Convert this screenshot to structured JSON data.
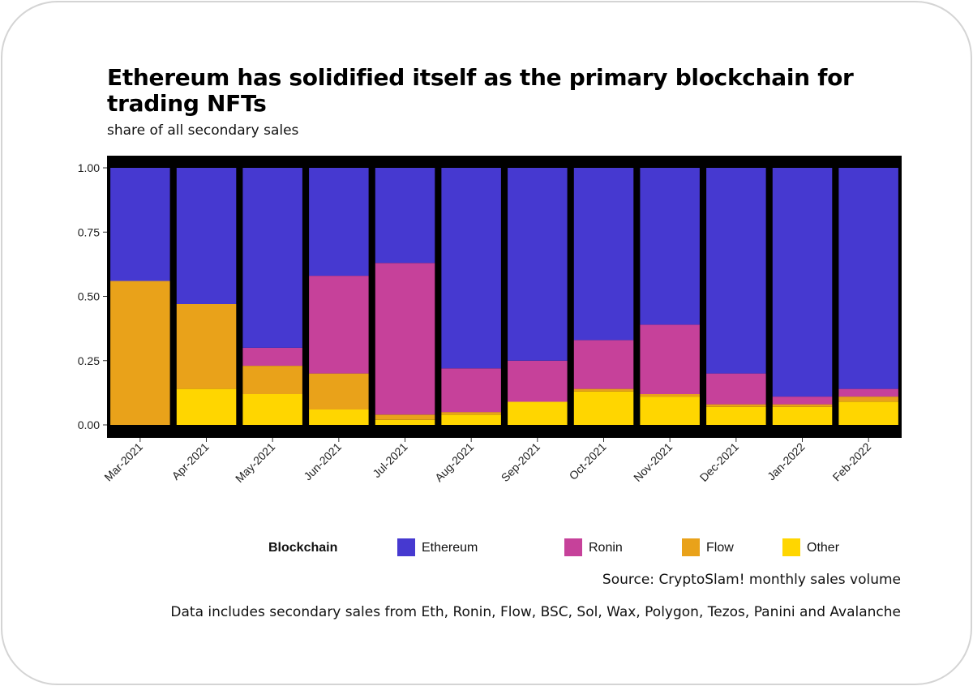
{
  "title": "Ethereum has solidified itself as the primary blockchain for trading NFTs",
  "subtitle": "share of all secondary sales",
  "legend": {
    "title": "Blockchain",
    "items": [
      {
        "name": "Ethereum",
        "color": "#4639D0"
      },
      {
        "name": "Ronin",
        "color": "#C6419A"
      },
      {
        "name": "Flow",
        "color": "#E9A21A"
      },
      {
        "name": "Other",
        "color": "#FFD600"
      }
    ]
  },
  "captions": {
    "source": "Source: CryptoSlam! monthly sales volume",
    "note": "Data includes secondary sales from Eth, Ronin, Flow, BSC, Sol, Wax, Polygon, Tezos, Panini and Avalanche"
  },
  "chart_data": {
    "type": "bar",
    "stacked": true,
    "title": "Ethereum has solidified itself as the primary blockchain for trading NFTs",
    "subtitle": "share of all secondary sales",
    "xlabel": "",
    "ylabel": "",
    "ylim": [
      0,
      1
    ],
    "yticks": [
      "0.00",
      "0.25",
      "0.50",
      "0.75",
      "1.00"
    ],
    "categories": [
      "Mar-2021",
      "Apr-2021",
      "May-2021",
      "Jun-2021",
      "Jul-2021",
      "Aug-2021",
      "Sep-2021",
      "Oct-2021",
      "Nov-2021",
      "Dec-2021",
      "Jan-2022",
      "Feb-2022"
    ],
    "series": [
      {
        "name": "Other",
        "color": "#FFD600",
        "values": [
          0.0,
          0.14,
          0.12,
          0.06,
          0.02,
          0.04,
          0.09,
          0.13,
          0.11,
          0.07,
          0.07,
          0.09
        ]
      },
      {
        "name": "Flow",
        "color": "#E9A21A",
        "values": [
          0.56,
          0.33,
          0.11,
          0.14,
          0.02,
          0.01,
          0.0,
          0.01,
          0.01,
          0.01,
          0.01,
          0.02
        ]
      },
      {
        "name": "Ronin",
        "color": "#C6419A",
        "values": [
          0.0,
          0.0,
          0.07,
          0.38,
          0.59,
          0.17,
          0.16,
          0.19,
          0.27,
          0.12,
          0.03,
          0.03
        ]
      },
      {
        "name": "Ethereum",
        "color": "#4639D0",
        "values": [
          0.44,
          0.53,
          0.7,
          0.42,
          0.37,
          0.78,
          0.75,
          0.67,
          0.61,
          0.8,
          0.89,
          0.86
        ]
      }
    ],
    "legend_position": "bottom"
  }
}
